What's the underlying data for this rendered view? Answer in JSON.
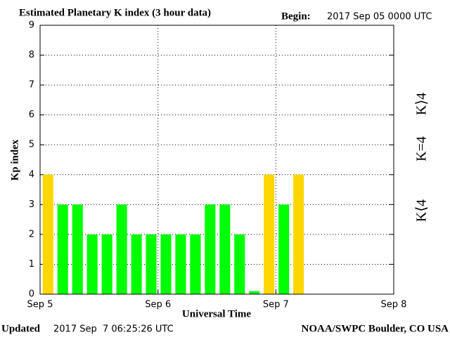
{
  "chart_data": {
    "type": "bar",
    "title": "Estimated Planetary K index (3 hour data)",
    "begin_label": "Begin:",
    "begin": "2017 Sep 05 0000 UTC",
    "y_label": "Kp index",
    "x_label": "Universal Time",
    "updated_label": "Updated",
    "updated": "2017 Sep  7 06:25:26 UTC",
    "source": "NOAA/SWPC Boulder, CO USA",
    "x": [
      0,
      3,
      6,
      9,
      12,
      15,
      18,
      21,
      24,
      27,
      30,
      33,
      36,
      39,
      42,
      45,
      48,
      51
    ],
    "values": [
      4,
      3,
      3,
      2,
      2,
      3,
      2,
      2,
      2,
      2,
      2,
      3,
      3,
      2,
      0.1,
      4,
      3,
      4
    ],
    "colors": [
      "#ffd700",
      "#00ff00",
      "#00ff00",
      "#00ff00",
      "#00ff00",
      "#00ff00",
      "#00ff00",
      "#00ff00",
      "#00ff00",
      "#00ff00",
      "#00ff00",
      "#00ff00",
      "#00ff00",
      "#00ff00",
      "#00ff00",
      "#ffd700",
      "#00ff00",
      "#ffd700"
    ],
    "bar_hours": 3,
    "legend": [
      {
        "label": "K⟨4",
        "color": "#00ee00"
      },
      {
        "label": "K=4",
        "color": "#ffd700"
      },
      {
        "label": "K⟩4",
        "color": "#ff2a00"
      }
    ],
    "xlim": [
      0,
      72
    ],
    "xticks": [
      {
        "value": 0,
        "label": "Sep 5"
      },
      {
        "value": 24,
        "label": "Sep 6"
      },
      {
        "value": 48,
        "label": "Sep 7"
      },
      {
        "value": 72,
        "label": "Sep 8"
      }
    ],
    "ylim": [
      0,
      9
    ],
    "yticks": [
      0,
      1,
      2,
      3,
      4,
      5,
      6,
      7,
      8,
      9
    ],
    "grid": true
  }
}
